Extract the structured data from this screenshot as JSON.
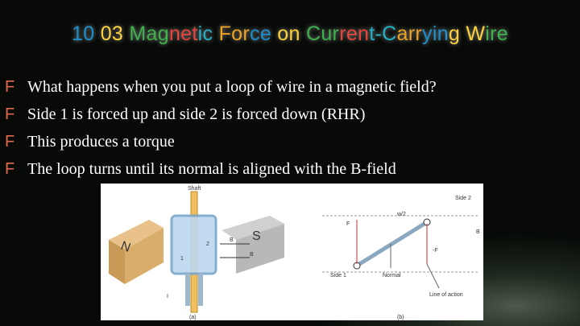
{
  "title": "10 03 Magnetic Force on Current-Carrying Wire",
  "bullet_marker": "F",
  "bullets": [
    "What happens when you put a loop of wire in a magnetic field?",
    "Side 1 is forced up and side 2 is forced down (RHR)",
    "This produces a torque",
    "The loop turns until its normal is aligned with the B-field"
  ],
  "figure": {
    "labels": {
      "shaft": "Shaft",
      "north": "N",
      "south": "S",
      "field_a1": "B",
      "field_a2": "B",
      "side2_a": "2",
      "side1_a": "1",
      "current": "I",
      "panel_a": "(a)",
      "side2_b": "Side 2",
      "force": "F",
      "half_width": "w/2",
      "field_b": "B",
      "neg_force": "-F",
      "side1_b": "Side 1",
      "normal": "Normal",
      "line_of_action": "Line of action",
      "panel_b": "(b)"
    }
  }
}
